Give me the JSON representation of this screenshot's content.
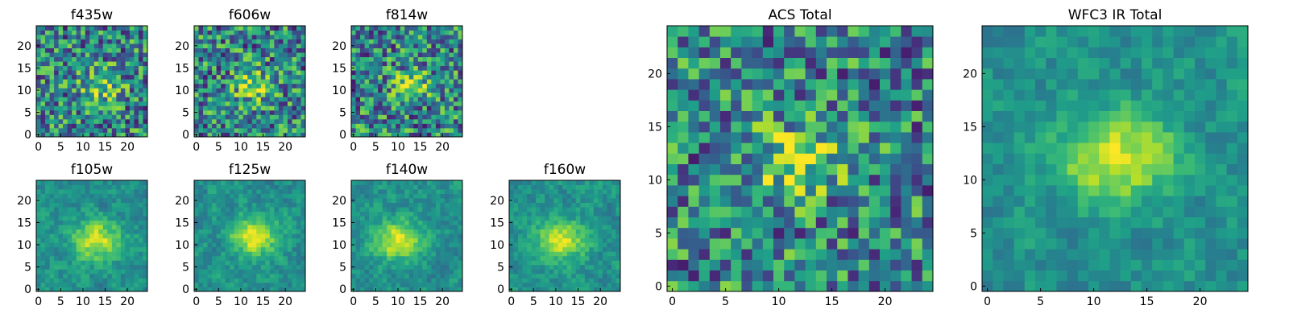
{
  "figure": {
    "colormap": "viridis",
    "background": "#ffffff"
  },
  "chart_data": [
    {
      "type": "heatmap",
      "title": "f435w",
      "xlabel": "",
      "ylabel": "",
      "grid_size": 25,
      "xlim": [
        0,
        24
      ],
      "ylim": [
        0,
        24
      ],
      "x_ticks": [
        0,
        5,
        10,
        15,
        20
      ],
      "y_ticks": [
        0,
        5,
        10,
        15,
        20
      ],
      "grid": false,
      "peak": [
        14,
        11
      ],
      "texture": "noisy"
    },
    {
      "type": "heatmap",
      "title": "f606w",
      "xlabel": "",
      "ylabel": "",
      "grid_size": 25,
      "xlim": [
        0,
        24
      ],
      "ylim": [
        0,
        24
      ],
      "x_ticks": [
        0,
        5,
        10,
        15,
        20
      ],
      "y_ticks": [
        0,
        5,
        10,
        15,
        20
      ],
      "grid": false,
      "peak": [
        13,
        11
      ],
      "texture": "noisy"
    },
    {
      "type": "heatmap",
      "title": "f814w",
      "xlabel": "",
      "ylabel": "",
      "grid_size": 25,
      "xlim": [
        0,
        24
      ],
      "ylim": [
        0,
        24
      ],
      "x_ticks": [
        0,
        5,
        10,
        15,
        20
      ],
      "y_ticks": [
        0,
        5,
        10,
        15,
        20
      ],
      "grid": false,
      "peak": [
        13,
        11
      ],
      "texture": "noisy"
    },
    {
      "type": "heatmap",
      "title": "f105w",
      "xlabel": "",
      "ylabel": "",
      "grid_size": 25,
      "xlim": [
        0,
        24
      ],
      "ylim": [
        0,
        24
      ],
      "x_ticks": [
        0,
        5,
        10,
        15,
        20
      ],
      "y_ticks": [
        0,
        5,
        10,
        15,
        20
      ],
      "grid": false,
      "peak": [
        13,
        11
      ],
      "texture": "smooth"
    },
    {
      "type": "heatmap",
      "title": "f125w",
      "xlabel": "",
      "ylabel": "",
      "grid_size": 25,
      "xlim": [
        0,
        24
      ],
      "ylim": [
        0,
        24
      ],
      "x_ticks": [
        0,
        5,
        10,
        15,
        20
      ],
      "y_ticks": [
        0,
        5,
        10,
        15,
        20
      ],
      "grid": false,
      "peak": [
        13,
        12
      ],
      "texture": "smooth"
    },
    {
      "type": "heatmap",
      "title": "f140w",
      "xlabel": "",
      "ylabel": "",
      "grid_size": 25,
      "xlim": [
        0,
        24
      ],
      "ylim": [
        0,
        24
      ],
      "x_ticks": [
        0,
        5,
        10,
        15,
        20
      ],
      "y_ticks": [
        0,
        5,
        10,
        15,
        20
      ],
      "grid": false,
      "peak": [
        10,
        11
      ],
      "texture": "smooth"
    },
    {
      "type": "heatmap",
      "title": "f160w",
      "xlabel": "",
      "ylabel": "",
      "grid_size": 25,
      "xlim": [
        0,
        24
      ],
      "ylim": [
        0,
        24
      ],
      "x_ticks": [
        0,
        5,
        10,
        15,
        20
      ],
      "y_ticks": [
        0,
        5,
        10,
        15,
        20
      ],
      "grid": false,
      "peak": [
        11,
        11
      ],
      "texture": "smooth"
    },
    {
      "type": "heatmap",
      "title": "ACS Total",
      "xlabel": "",
      "ylabel": "",
      "grid_size": 25,
      "xlim": [
        0,
        24
      ],
      "ylim": [
        0,
        24
      ],
      "x_ticks": [
        0,
        5,
        10,
        15,
        20
      ],
      "y_ticks": [
        0,
        5,
        10,
        15,
        20
      ],
      "grid": false,
      "peak": [
        12,
        12
      ],
      "texture": "noisy"
    },
    {
      "type": "heatmap",
      "title": "WFC3 IR Total",
      "xlabel": "",
      "ylabel": "",
      "grid_size": 25,
      "xlim": [
        0,
        24
      ],
      "ylim": [
        0,
        24
      ],
      "x_ticks": [
        0,
        5,
        10,
        15,
        20
      ],
      "y_ticks": [
        0,
        5,
        10,
        15,
        20
      ],
      "grid": false,
      "peak": [
        12,
        12
      ],
      "texture": "smooth"
    }
  ]
}
